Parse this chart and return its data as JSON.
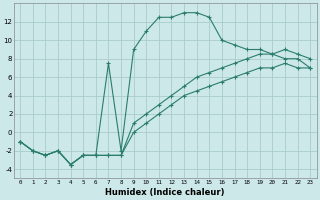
{
  "xlabel": "Humidex (Indice chaleur)",
  "bg_color": "#cde8e8",
  "grid_color": "#a8cccc",
  "line_color": "#2a7d6e",
  "xlim": [
    -0.5,
    23.5
  ],
  "ylim": [
    -5,
    14
  ],
  "yticks": [
    -4,
    -2,
    0,
    2,
    4,
    6,
    8,
    10,
    12
  ],
  "xticks": [
    0,
    1,
    2,
    3,
    4,
    5,
    6,
    7,
    8,
    9,
    10,
    11,
    12,
    13,
    14,
    15,
    16,
    17,
    18,
    19,
    20,
    21,
    22,
    23
  ],
  "series": [
    {
      "x": [
        0,
        1,
        2,
        3,
        4,
        5,
        6,
        7,
        8,
        9,
        10,
        11,
        12,
        13,
        14,
        15,
        16,
        17,
        18,
        19,
        20,
        21,
        22,
        23
      ],
      "y": [
        -1,
        -2,
        -2.5,
        -2,
        -3.5,
        -2.5,
        -2.5,
        7.5,
        -2,
        9,
        11,
        12.5,
        12.5,
        13,
        13,
        12.5,
        10,
        9.5,
        9,
        9,
        8.5,
        8,
        8,
        7
      ]
    },
    {
      "x": [
        0,
        1,
        2,
        3,
        4,
        5,
        6,
        7,
        8,
        9,
        10,
        11,
        12,
        13,
        14,
        15,
        16,
        17,
        18,
        19,
        20,
        21,
        22,
        23
      ],
      "y": [
        -1,
        -2,
        -2.5,
        -2,
        -3.5,
        -2.5,
        -2.5,
        -2.5,
        -2.5,
        0,
        1,
        2,
        3,
        4,
        4.5,
        5,
        5.5,
        6,
        6.5,
        7,
        7,
        7.5,
        7,
        7
      ]
    },
    {
      "x": [
        0,
        1,
        2,
        3,
        4,
        5,
        6,
        7,
        8,
        9,
        10,
        11,
        12,
        13,
        14,
        15,
        16,
        17,
        18,
        19,
        20,
        21,
        22,
        23
      ],
      "y": [
        -1,
        -2,
        -2.5,
        -2,
        -3.5,
        -2.5,
        -2.5,
        -2.5,
        -2.5,
        1,
        2,
        3,
        4,
        5,
        6,
        6.5,
        7,
        7.5,
        8,
        8.5,
        8.5,
        9,
        8.5,
        8
      ]
    }
  ]
}
